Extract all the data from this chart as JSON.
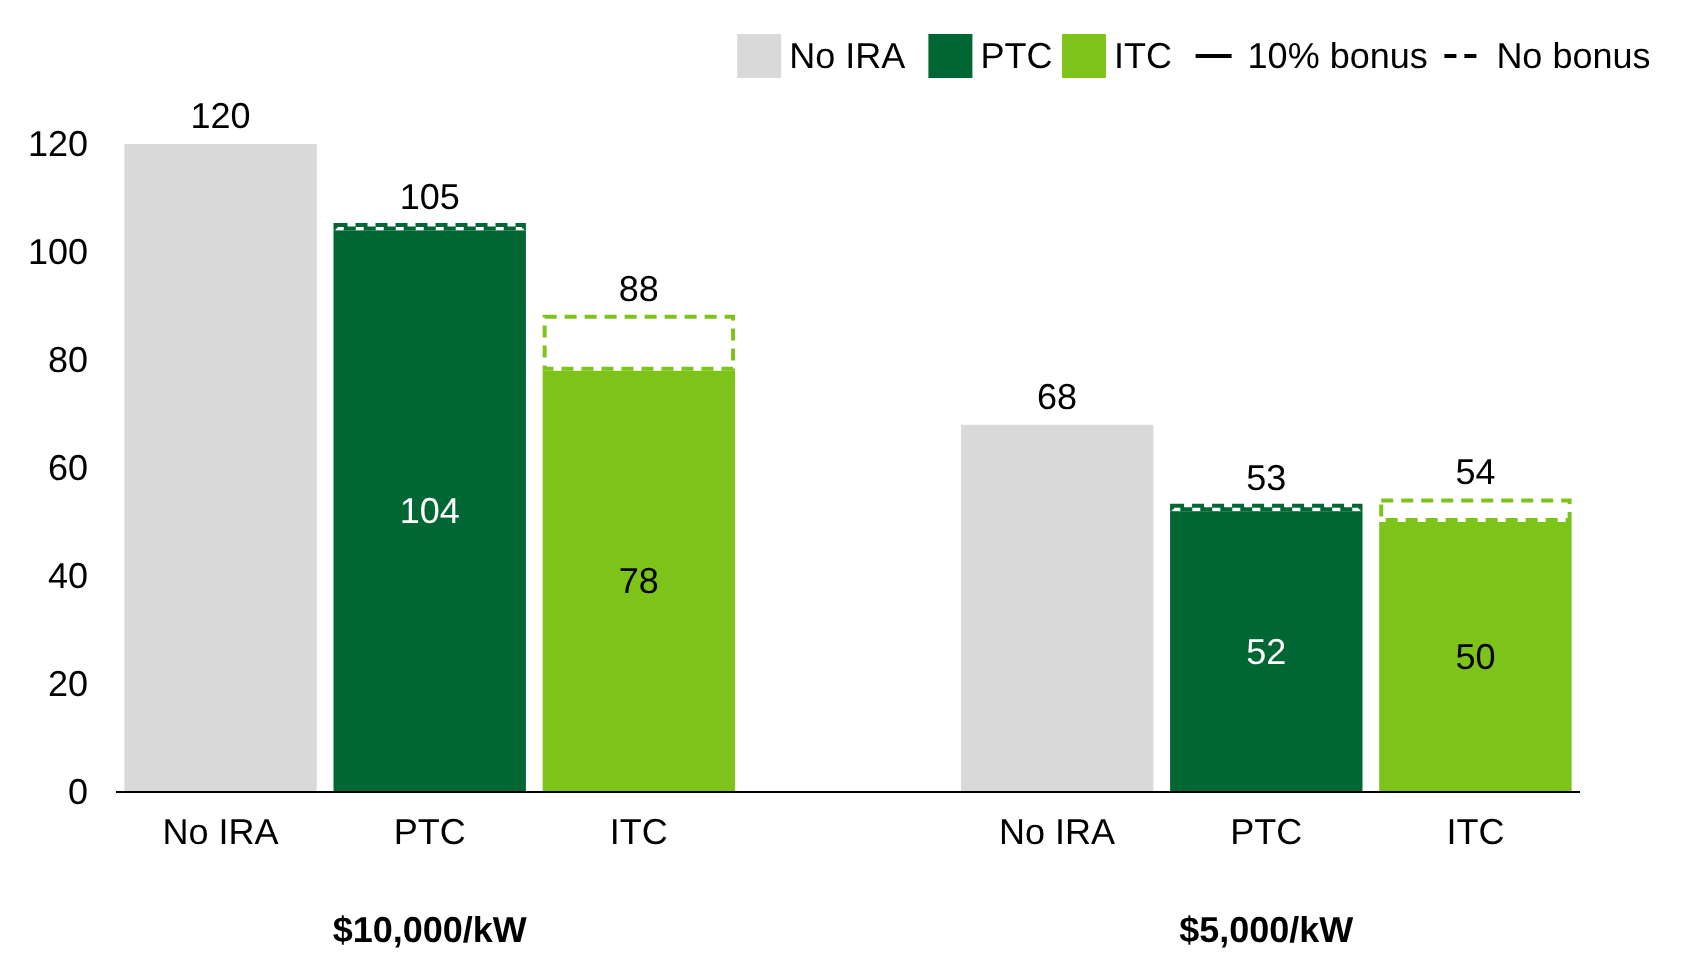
{
  "chart_data": {
    "type": "bar",
    "stacked": true,
    "categories": [
      "No IRA",
      "PTC",
      "ITC",
      null,
      "No IRA",
      "PTC",
      "ITC"
    ],
    "series": [
      {
        "name": "No IRA",
        "color": "#d9d9d9",
        "values": [
          120,
          null,
          null,
          null,
          68,
          null,
          null
        ],
        "value_labels": [
          null,
          null,
          null,
          null,
          null,
          null,
          null
        ]
      },
      {
        "name": "PTC",
        "color": "#006633",
        "values": [
          null,
          104,
          null,
          null,
          null,
          52,
          null
        ],
        "value_labels": [
          null,
          "104",
          null,
          null,
          null,
          "52",
          null
        ]
      },
      {
        "name": "ITC",
        "color": "#7dc31a",
        "values": [
          null,
          null,
          78,
          null,
          null,
          null,
          50
        ],
        "value_labels": [
          null,
          null,
          "78",
          null,
          null,
          null,
          "50"
        ]
      },
      {
        "line_style": "dashed",
        "colors": [
          null,
          "#006633",
          "#7dc31a",
          null,
          null,
          "#006633",
          "#7dc31a"
        ],
        "values": [
          null,
          1,
          10,
          null,
          null,
          1,
          4
        ],
        "value_labels": [
          null,
          null,
          null,
          null,
          null,
          null,
          null
        ]
      }
    ],
    "totals": [
      "120",
      "105",
      "88",
      null,
      "68",
      "53",
      "54"
    ],
    "annotations": [
      "$10,000/kW",
      "$5,000/kW",
      "10% bonus",
      "No bonus"
    ],
    "ylim": [
      0,
      120
    ],
    "yticks": [
      0,
      20,
      40,
      60,
      80,
      100,
      120
    ],
    "legend": "top right"
  }
}
